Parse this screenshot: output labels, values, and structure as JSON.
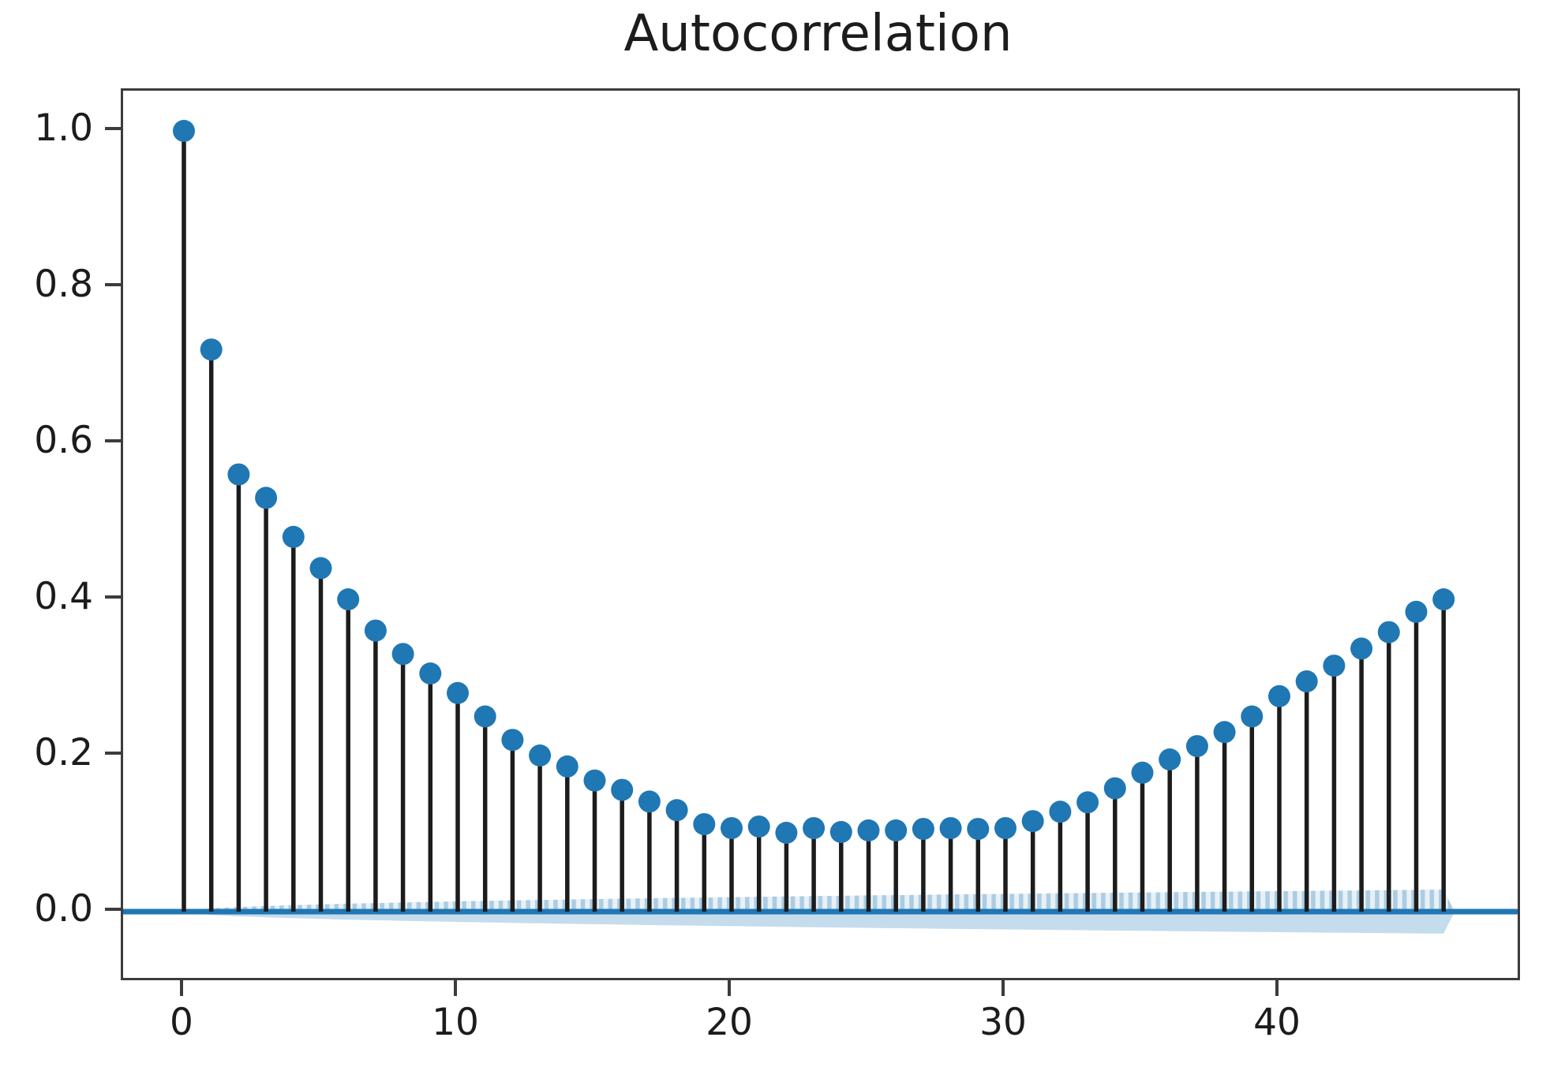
{
  "title": "Autocorrelation",
  "chart_data": {
    "type": "stem",
    "subtype": "autocorrelation-acf",
    "title": "Autocorrelation",
    "xlabel": "",
    "ylabel": "",
    "x": [
      0,
      1,
      2,
      3,
      4,
      5,
      6,
      7,
      8,
      9,
      10,
      11,
      12,
      13,
      14,
      15,
      16,
      17,
      18,
      19,
      20,
      21,
      22,
      23,
      24,
      25,
      26,
      27,
      28,
      29,
      30,
      31,
      32,
      33,
      34,
      35,
      36,
      37,
      38,
      39,
      40,
      41,
      42,
      43,
      44,
      45,
      46
    ],
    "values": [
      1.0,
      0.72,
      0.56,
      0.53,
      0.48,
      0.44,
      0.4,
      0.36,
      0.33,
      0.305,
      0.28,
      0.25,
      0.22,
      0.2,
      0.186,
      0.168,
      0.156,
      0.141,
      0.13,
      0.112,
      0.107,
      0.109,
      0.101,
      0.107,
      0.102,
      0.104,
      0.104,
      0.106,
      0.107,
      0.106,
      0.107,
      0.116,
      0.128,
      0.14,
      0.158,
      0.178,
      0.195,
      0.212,
      0.23,
      0.25,
      0.276,
      0.295,
      0.315,
      0.337,
      0.358,
      0.384,
      0.4
    ],
    "xtick_values": [
      0,
      10,
      20,
      30,
      40
    ],
    "xtick_labels": [
      "0",
      "10",
      "20",
      "30",
      "40"
    ],
    "ytick_values": [
      0.0,
      0.2,
      0.4,
      0.6,
      0.8,
      1.0
    ],
    "ytick_labels": [
      "0.0",
      "0.2",
      "0.4",
      "0.6",
      "0.8",
      "1.0"
    ],
    "xlim": [
      -2.2,
      48.8
    ],
    "ylim": [
      -0.085,
      1.052
    ],
    "grid": false,
    "legend": null,
    "zero_line": true,
    "confidence_band": {
      "start_lag": 0.5,
      "end_lag": 46.4,
      "half_width_at_end": 0.0283,
      "shape": "sqrt"
    },
    "colors": {
      "marker": "#1f77b4",
      "stem": "#1c1c1c",
      "zero_line": "#2077b4",
      "band_fill": "rgba(31,119,180,0.26)",
      "band_upper_base": "rgba(31,119,180,0.10)",
      "band_stripe": "rgba(31,119,180,0.30)",
      "spine": "#3c3c3c",
      "text": "#1c1c1c",
      "background": "#ffffff"
    }
  }
}
